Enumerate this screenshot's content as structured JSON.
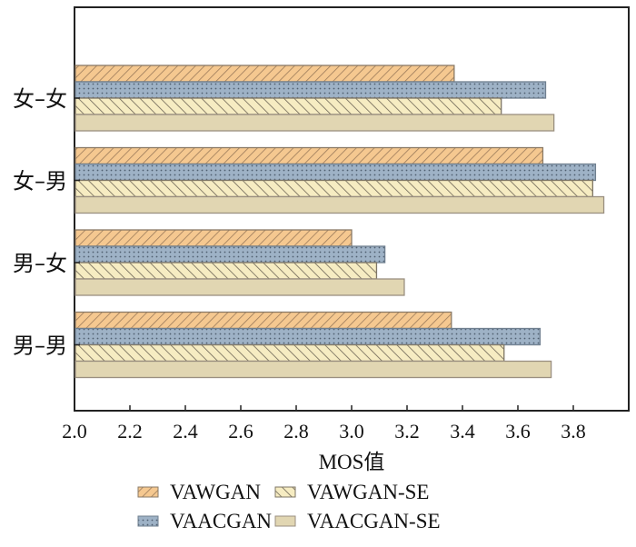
{
  "chart_data": {
    "type": "bar",
    "orientation": "horizontal",
    "title": "",
    "xlabel": "MOS值",
    "ylabel": "",
    "xlim": [
      2.0,
      4.0
    ],
    "xticks": [
      "2.0",
      "2.2",
      "2.4",
      "2.6",
      "2.8",
      "3.0",
      "3.2",
      "3.4",
      "3.6",
      "3.8"
    ],
    "xtick_values": [
      2.0,
      2.2,
      2.4,
      2.6,
      2.8,
      3.0,
      3.2,
      3.4,
      3.6,
      3.8
    ],
    "categories": [
      "女-女",
      "女-男",
      "男-女",
      "男-男"
    ],
    "category_labels": [
      "女–女",
      "女–男",
      "男–女",
      "男–男"
    ],
    "grid": false,
    "legend_position": "bottom",
    "series": [
      {
        "name": "VAWGAN",
        "pattern": "forward-hatch",
        "fill": "#f5c890",
        "stroke": "#8a7a66",
        "values": [
          3.37,
          3.69,
          3.0,
          3.36
        ]
      },
      {
        "name": "VAACGAN",
        "pattern": "dots",
        "fill": "#9eb2c6",
        "stroke": "#6f7f8f",
        "values": [
          3.7,
          3.88,
          3.12,
          3.68
        ]
      },
      {
        "name": "VAWGAN-SE",
        "pattern": "back-hatch",
        "fill": "#f6ecc2",
        "stroke": "#7e7666",
        "values": [
          3.54,
          3.87,
          3.09,
          3.55
        ]
      },
      {
        "name": "VAACGAN-SE",
        "pattern": "solid",
        "fill": "#e1d6b2",
        "stroke": "#9a8f80",
        "values": [
          3.73,
          3.91,
          3.19,
          3.72
        ]
      }
    ],
    "legend_order": [
      "VAWGAN",
      "VAWGAN-SE",
      "VAACGAN",
      "VAACGAN-SE"
    ]
  }
}
